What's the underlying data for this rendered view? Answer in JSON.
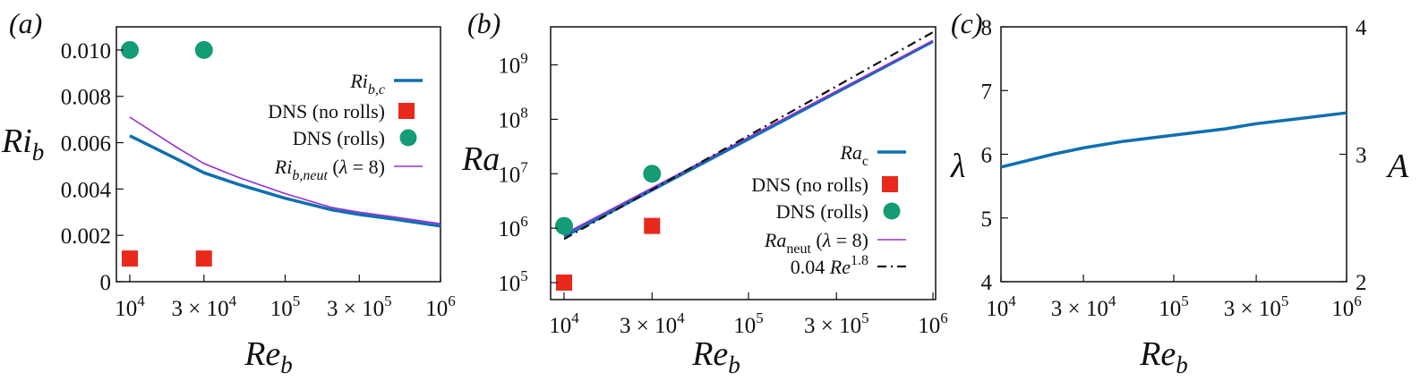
{
  "colors": {
    "critical": "#0f6fb0",
    "dns_no_rolls": "#e8291c",
    "dns_rolls": "#139c75",
    "neutral": "#9a2bd6",
    "fit": "#111111"
  },
  "chart_data": [
    {
      "panel_label": "(a)",
      "type": "line",
      "xlabel": "Re_b",
      "ylabel": "Ri_b",
      "xscale": "log",
      "xlim": [
        10000,
        1000000
      ],
      "ylim": [
        0,
        0.011
      ],
      "x_ticks": [
        {
          "value": 10000,
          "base": "10",
          "exp": "4"
        },
        {
          "value": 30000,
          "base": "3 × 10",
          "exp": "4"
        },
        {
          "value": 100000,
          "base": "10",
          "exp": "5"
        },
        {
          "value": 300000,
          "base": "3 × 10",
          "exp": "5"
        },
        {
          "value": 1000000,
          "base": "10",
          "exp": "6"
        }
      ],
      "y_ticks": [
        {
          "value": 0,
          "label": "0"
        },
        {
          "value": 0.002,
          "label": "0.002"
        },
        {
          "value": 0.004,
          "label": "0.004"
        },
        {
          "value": 0.006,
          "label": "0.006"
        },
        {
          "value": 0.008,
          "label": "0.008"
        },
        {
          "value": 0.01,
          "label": "0.010"
        }
      ],
      "legend_position": "right",
      "series": [
        {
          "name": "Ri_b,c",
          "kind": "line",
          "style": "critical",
          "x": [
            10000,
            20000,
            30000,
            50000,
            100000,
            200000,
            300000,
            500000,
            1000000
          ],
          "y": [
            0.0063,
            0.0053,
            0.0047,
            0.0042,
            0.0036,
            0.0031,
            0.0029,
            0.0027,
            0.0024
          ]
        },
        {
          "name": "DNS (no rolls)",
          "kind": "square",
          "style": "dns_no_rolls",
          "x": [
            10000,
            30000
          ],
          "y": [
            0.001,
            0.001
          ]
        },
        {
          "name": "DNS (rolls)",
          "kind": "circle",
          "style": "dns_rolls",
          "x": [
            10000,
            30000
          ],
          "y": [
            0.01,
            0.01
          ]
        },
        {
          "name": "Ri_b,neut (λ = 8)",
          "kind": "thinline",
          "style": "neutral",
          "x": [
            10000,
            20000,
            30000,
            50000,
            100000,
            200000,
            300000,
            500000,
            1000000
          ],
          "y": [
            0.0071,
            0.0058,
            0.0051,
            0.0045,
            0.0038,
            0.0032,
            0.003,
            0.0028,
            0.0025
          ]
        }
      ]
    },
    {
      "panel_label": "(b)",
      "type": "line",
      "xlabel": "Re_b",
      "ylabel": "Ra",
      "xscale": "log",
      "yscale": "log",
      "xlim": [
        10000,
        1000000
      ],
      "ylim": [
        100000,
        5000000000
      ],
      "x_ticks": [
        {
          "value": 10000,
          "base": "10",
          "exp": "4"
        },
        {
          "value": 30000,
          "base": "3 × 10",
          "exp": "4"
        },
        {
          "value": 100000,
          "base": "10",
          "exp": "5"
        },
        {
          "value": 300000,
          "base": "3 × 10",
          "exp": "5"
        },
        {
          "value": 1000000,
          "base": "10",
          "exp": "6"
        }
      ],
      "y_ticks": [
        {
          "value": 100000,
          "base": "10",
          "exp": "5"
        },
        {
          "value": 1000000,
          "base": "10",
          "exp": "6"
        },
        {
          "value": 10000000,
          "base": "10",
          "exp": "7"
        },
        {
          "value": 100000000,
          "base": "10",
          "exp": "8"
        },
        {
          "value": 1000000000,
          "base": "10",
          "exp": "9"
        }
      ],
      "legend_position": "bottom-right",
      "series": [
        {
          "name": "Ra_c",
          "kind": "line",
          "style": "critical",
          "x": [
            10000,
            1000000
          ],
          "y": [
            700000,
            2700000000
          ]
        },
        {
          "name": "DNS (no rolls)",
          "kind": "square",
          "style": "dns_no_rolls",
          "x": [
            10000,
            30000
          ],
          "y": [
            100000,
            1100000
          ]
        },
        {
          "name": "DNS (rolls)",
          "kind": "circle",
          "style": "dns_rolls",
          "x": [
            10000,
            30000
          ],
          "y": [
            1100000,
            10000000
          ]
        },
        {
          "name": "Ra_neut (λ = 8)",
          "kind": "thinline",
          "style": "neutral",
          "x": [
            10000,
            1000000
          ],
          "y": [
            780000,
            2800000000
          ]
        },
        {
          "name": "0.04 Re^1.8",
          "kind": "dashdot",
          "style": "fit",
          "x": [
            10000,
            1000000
          ],
          "y": [
            630957,
            3981071706
          ]
        }
      ]
    },
    {
      "panel_label": "(c)",
      "type": "line",
      "xlabel": "Re_b",
      "ylabel": "λ",
      "y2label": "A",
      "xscale": "log",
      "xlim": [
        10000,
        1000000
      ],
      "ylim": [
        4,
        8
      ],
      "y2lim": [
        2,
        4
      ],
      "x_ticks": [
        {
          "value": 10000,
          "base": "10",
          "exp": "4"
        },
        {
          "value": 30000,
          "base": "3 × 10",
          "exp": "4"
        },
        {
          "value": 100000,
          "base": "10",
          "exp": "5"
        },
        {
          "value": 300000,
          "base": "3 × 10",
          "exp": "5"
        },
        {
          "value": 1000000,
          "base": "10",
          "exp": "6"
        }
      ],
      "y_ticks": [
        {
          "value": 4,
          "label": "4"
        },
        {
          "value": 5,
          "label": "5"
        },
        {
          "value": 6,
          "label": "6"
        },
        {
          "value": 7,
          "label": "7"
        },
        {
          "value": 8,
          "label": "8"
        }
      ],
      "y2_ticks": [
        {
          "value": 2,
          "label": "2"
        },
        {
          "value": 3,
          "label": "3"
        },
        {
          "value": 4,
          "label": "4"
        }
      ],
      "series": [
        {
          "kind": "line",
          "style": "critical",
          "x": [
            10000,
            20000,
            30000,
            50000,
            100000,
            200000,
            300000,
            500000,
            1000000
          ],
          "y": [
            5.8,
            6.0,
            6.1,
            6.2,
            6.3,
            6.4,
            6.48,
            6.55,
            6.65
          ]
        }
      ]
    }
  ]
}
